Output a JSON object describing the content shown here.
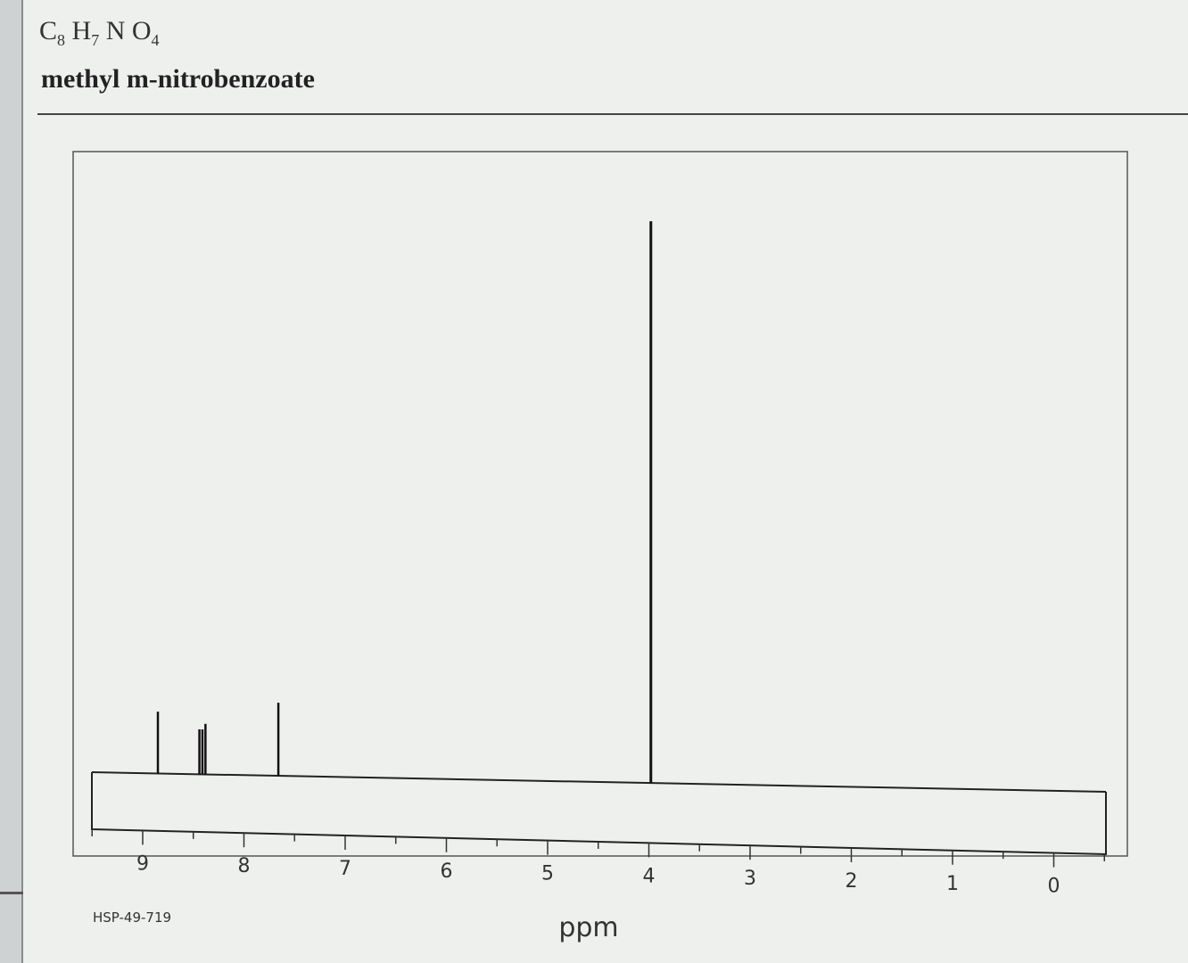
{
  "header": {
    "formula": [
      {
        "el": "C",
        "n": "8"
      },
      {
        "el": "H",
        "n": "7"
      },
      {
        "el": "N",
        "n": ""
      },
      {
        "el": "O",
        "n": "4"
      }
    ],
    "compound_name": "methyl m-nitrobenzoate"
  },
  "footer": {
    "code": "HSP-49-719"
  },
  "chart_data": {
    "type": "line",
    "title": "",
    "xlabel": "ppm",
    "ylabel": "",
    "x_reversed": true,
    "xlim": [
      9.5,
      -0.5
    ],
    "x_ticks": [
      9,
      8,
      7,
      6,
      5,
      4,
      3,
      2,
      1,
      0
    ],
    "grid": false,
    "series": [
      {
        "peaks": [
          {
            "ppm": 8.85,
            "height": 0.11
          },
          {
            "ppm": 8.44,
            "height": 0.08
          },
          {
            "ppm": 8.41,
            "height": 0.08
          },
          {
            "ppm": 8.38,
            "height": 0.09
          },
          {
            "ppm": 7.66,
            "height": 0.13
          },
          {
            "ppm": 3.98,
            "height": 1.0
          }
        ]
      }
    ]
  }
}
